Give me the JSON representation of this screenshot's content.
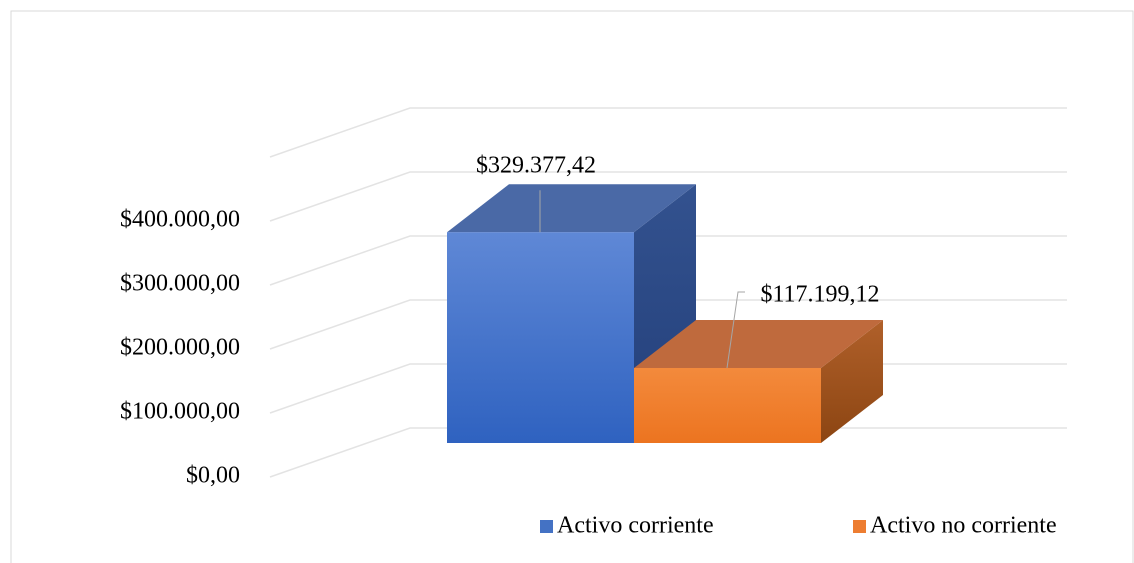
{
  "chart_data": {
    "type": "bar3d",
    "series": [
      {
        "name": "Activo corriente",
        "color": "#4472c4",
        "values": [
          329377.42
        ],
        "value_labels": [
          "$329.377,42"
        ]
      },
      {
        "name": "Activo no corriente",
        "color": "#ed7d31",
        "values": [
          117199.12
        ],
        "value_labels": [
          "$117.199,12"
        ]
      }
    ],
    "ylim": [
      0,
      500000
    ],
    "yticks": [
      {
        "value": 0,
        "label": "$0,00"
      },
      {
        "value": 100000,
        "label": "$100.000,00"
      },
      {
        "value": 200000,
        "label": "$200.000,00"
      },
      {
        "value": 300000,
        "label": "$300.000,00"
      },
      {
        "value": 400000,
        "label": "$400.000,00"
      }
    ],
    "grid": true,
    "legend": "bottom"
  }
}
